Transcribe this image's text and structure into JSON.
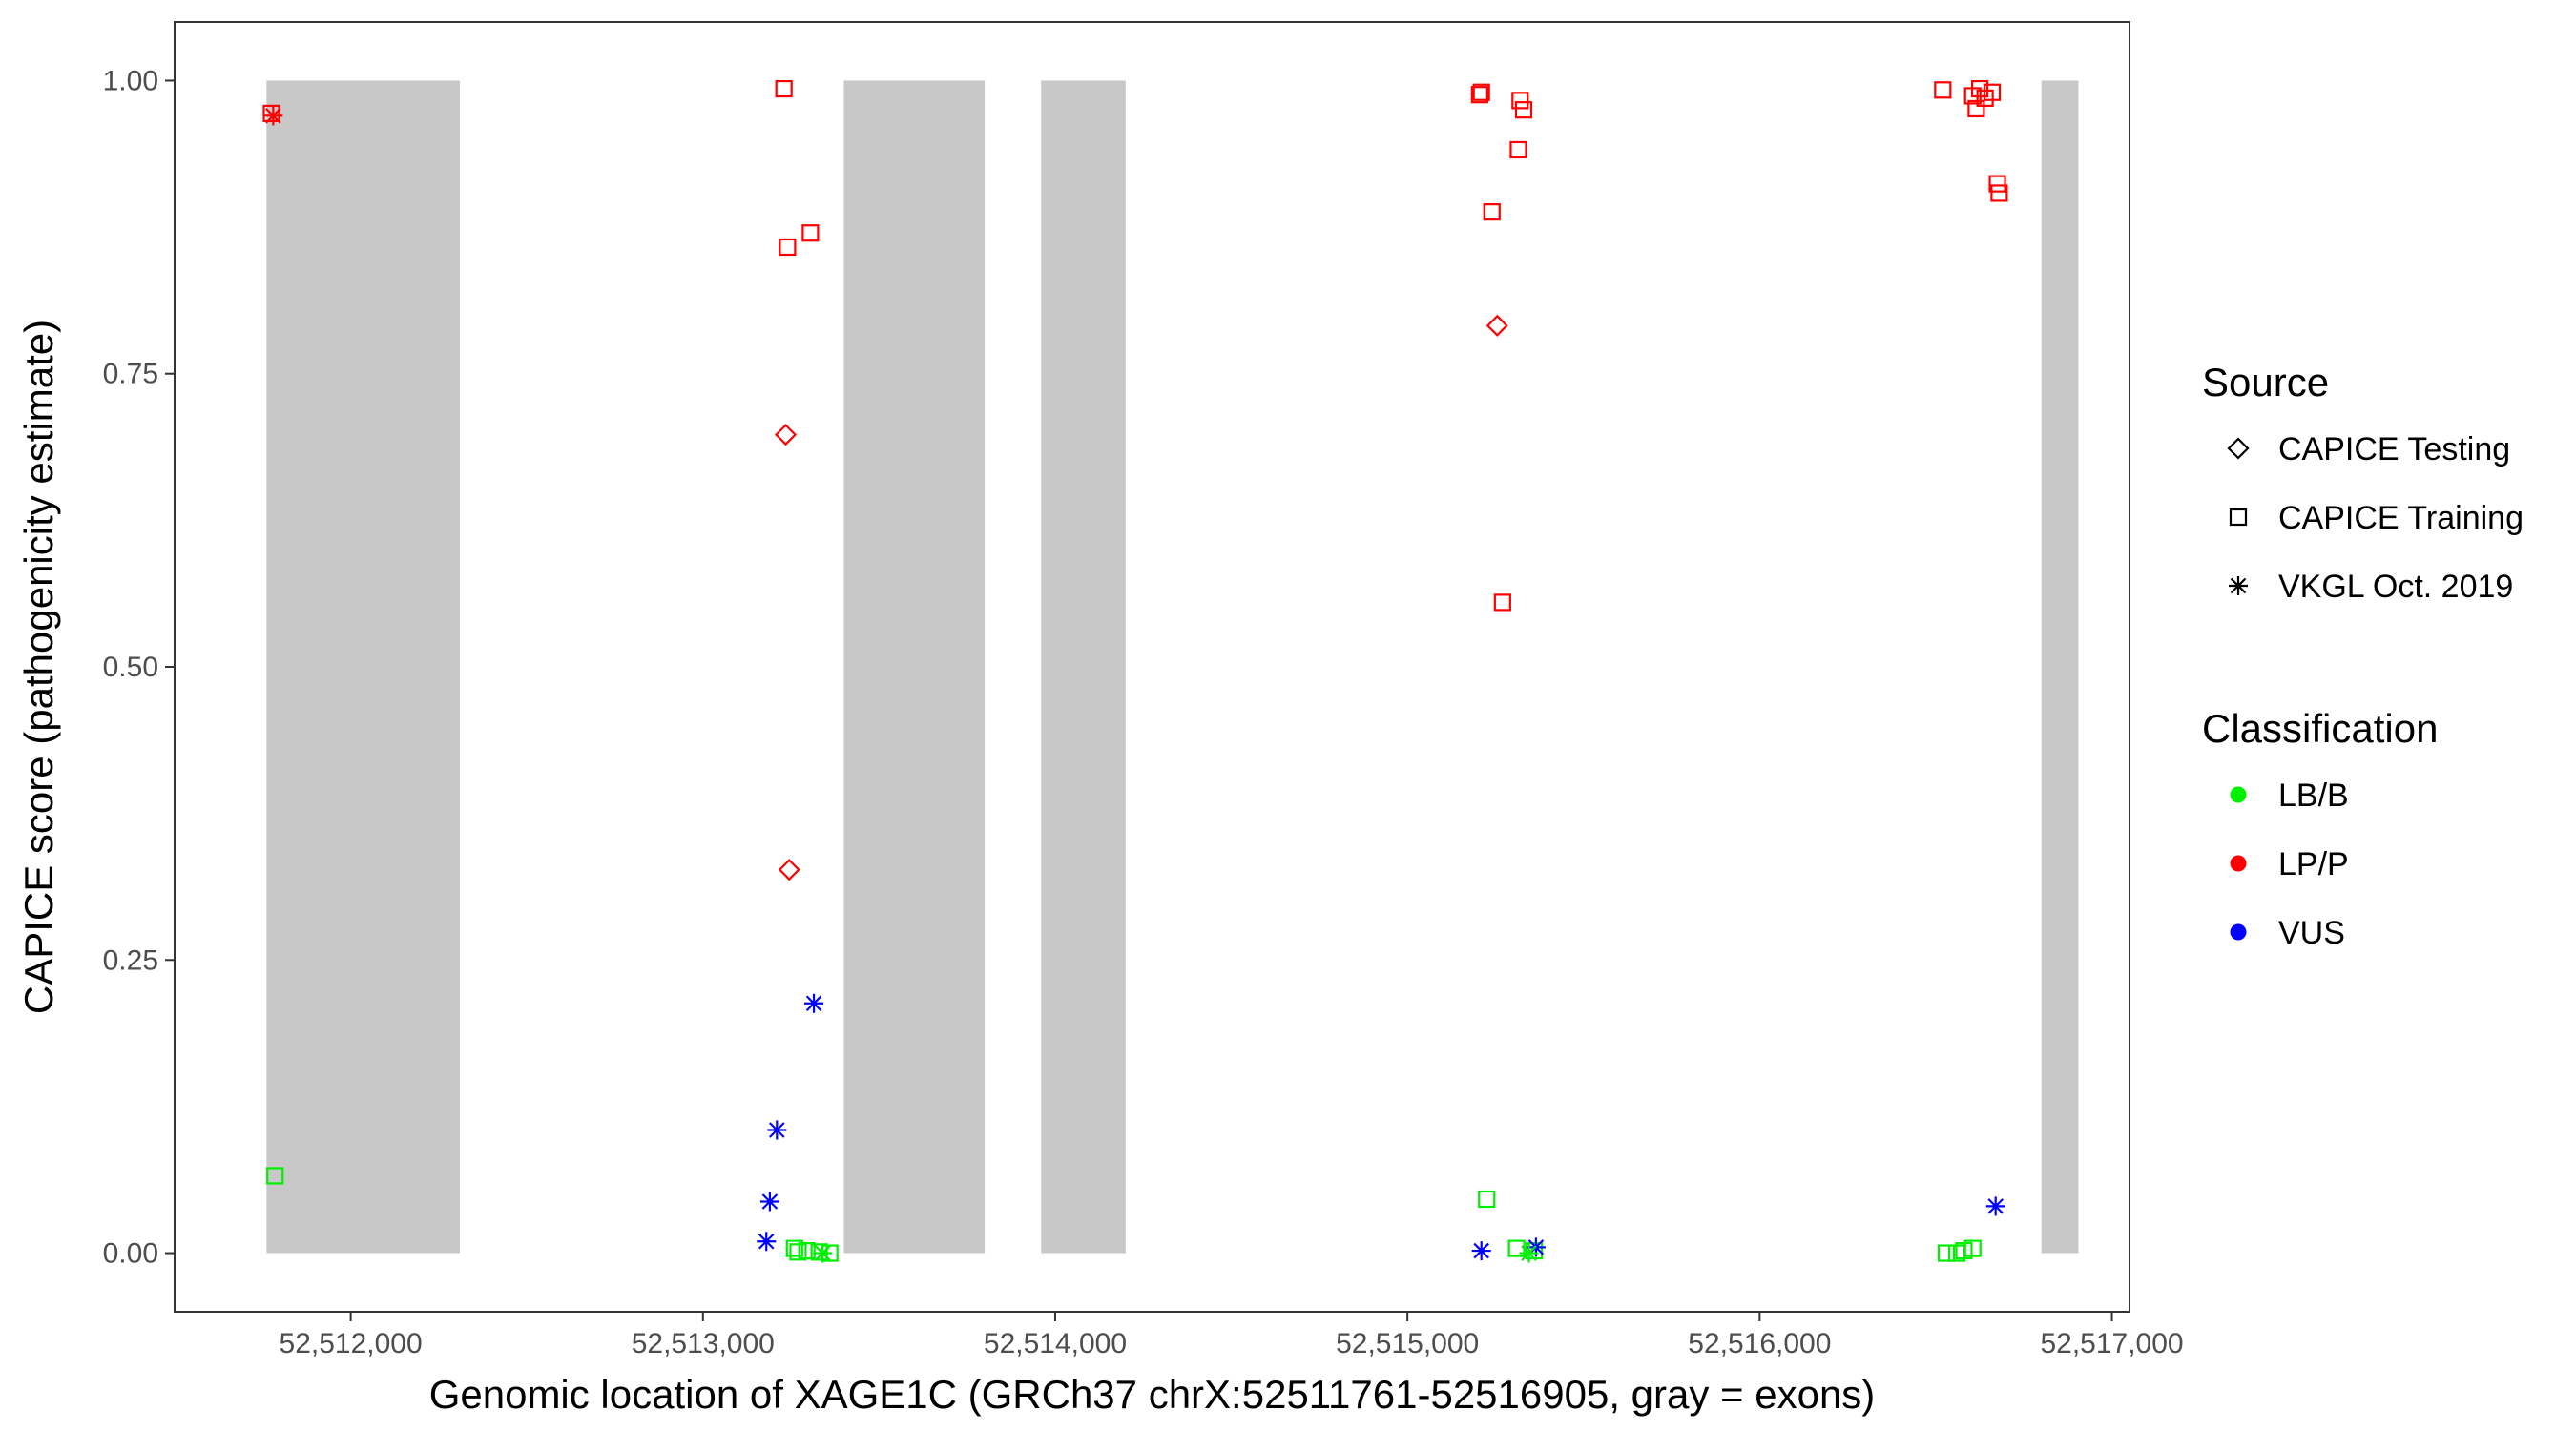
{
  "chart_data": {
    "type": "scatter",
    "title": "",
    "xlabel": "Genomic location of XAGE1C (GRCh37 chrX:52511761-52516905, gray = exons)",
    "ylabel": "CAPICE score (pathogenicity estimate)",
    "xlim": [
      52511500,
      52517050
    ],
    "ylim": [
      -0.05,
      1.05
    ],
    "x_ticks": [
      52512000,
      52513000,
      52514000,
      52515000,
      52516000,
      52517000
    ],
    "x_tick_labels": [
      "52,512,000",
      "52,513,000",
      "52,514,000",
      "52,515,000",
      "52,516,000",
      "52,517,000"
    ],
    "y_ticks": [
      0,
      0.25,
      0.5,
      0.75,
      1.0
    ],
    "y_tick_labels": [
      "0.00",
      "0.25",
      "0.50",
      "0.75",
      "1.00"
    ],
    "grid": false,
    "exons": [
      {
        "start": 52511761,
        "end": 52512310
      },
      {
        "start": 52513400,
        "end": 52513800
      },
      {
        "start": 52513960,
        "end": 52514200
      },
      {
        "start": 52516800,
        "end": 52516905
      }
    ],
    "exon_color": "#c8c8c8",
    "legend_position": "right",
    "legend": {
      "source_title": "Source",
      "source_items": [
        {
          "label": "CAPICE Testing",
          "shape": "diamond"
        },
        {
          "label": "CAPICE Training",
          "shape": "square"
        },
        {
          "label": "VKGL Oct. 2019",
          "shape": "asterisk"
        }
      ],
      "class_title": "Classification",
      "class_items": [
        {
          "label": "LB/B",
          "color": "#00ee00"
        },
        {
          "label": "LP/P",
          "color": "#ff0000"
        },
        {
          "label": "VUS",
          "color": "#0000ff"
        }
      ]
    },
    "series": [
      {
        "source": "CAPICE Testing",
        "shape": "diamond",
        "classification": "LP/P",
        "color": "#ff0000",
        "points": [
          [
            52513235,
            0.698
          ],
          [
            52513245,
            0.327
          ],
          [
            52515255,
            0.791
          ]
        ]
      },
      {
        "source": "CAPICE Training",
        "shape": "square",
        "classification": "LP/P",
        "color": "#ff0000",
        "points": [
          [
            52511775,
            0.972
          ],
          [
            52513230,
            0.993
          ],
          [
            52513240,
            0.858
          ],
          [
            52513305,
            0.87
          ],
          [
            52515205,
            0.988
          ],
          [
            52515210,
            0.99
          ],
          [
            52515240,
            0.888
          ],
          [
            52515320,
            0.983
          ],
          [
            52515330,
            0.975
          ],
          [
            52515315,
            0.941
          ],
          [
            52515270,
            0.555
          ],
          [
            52516520,
            0.992
          ],
          [
            52516605,
            0.987
          ],
          [
            52516615,
            0.976
          ],
          [
            52516625,
            0.993
          ],
          [
            52516640,
            0.985
          ],
          [
            52516660,
            0.99
          ],
          [
            52516675,
            0.912
          ],
          [
            52516680,
            0.904
          ]
        ]
      },
      {
        "source": "CAPICE Training",
        "shape": "square",
        "classification": "LB/B",
        "color": "#00ee00",
        "points": [
          [
            52511785,
            0.066
          ],
          [
            52513260,
            0.004
          ],
          [
            52513270,
            0.001
          ],
          [
            52513295,
            0.002
          ],
          [
            52513330,
            0.001
          ],
          [
            52513360,
            0.0
          ],
          [
            52515225,
            0.046
          ],
          [
            52515310,
            0.004
          ],
          [
            52515360,
            0.002
          ],
          [
            52516530,
            0.0
          ],
          [
            52516560,
            0.0
          ],
          [
            52516580,
            0.002
          ],
          [
            52516605,
            0.004
          ]
        ]
      },
      {
        "source": "VKGL Oct. 2019",
        "shape": "asterisk",
        "classification": "LP/P",
        "color": "#ff0000",
        "points": [
          [
            52511780,
            0.97
          ]
        ]
      },
      {
        "source": "VKGL Oct. 2019",
        "shape": "asterisk",
        "classification": "VUS",
        "color": "#0000ff",
        "points": [
          [
            52513180,
            0.01
          ],
          [
            52513190,
            0.044
          ],
          [
            52513210,
            0.105
          ],
          [
            52513315,
            0.213
          ],
          [
            52515210,
            0.002
          ],
          [
            52515365,
            0.005
          ],
          [
            52516670,
            0.04
          ]
        ]
      },
      {
        "source": "VKGL Oct. 2019",
        "shape": "asterisk",
        "classification": "LB/B",
        "color": "#00ee00",
        "points": [
          [
            52513340,
            0.0
          ],
          [
            52515345,
            0.0
          ]
        ]
      }
    ]
  }
}
